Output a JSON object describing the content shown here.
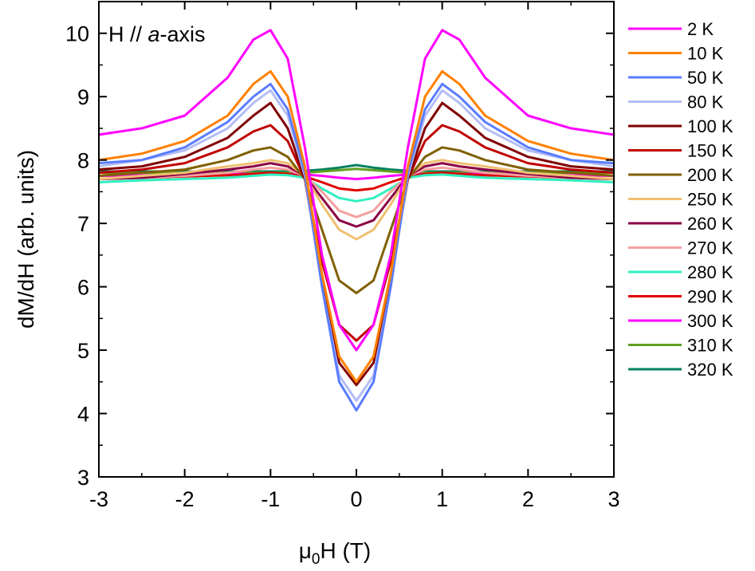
{
  "chart_data": {
    "type": "line",
    "annotation": {
      "prefix": "H // ",
      "italic": "a",
      "suffix": "-axis"
    },
    "xlabel": {
      "mu": "μ",
      "sub": "0",
      "rest": "H (T)"
    },
    "ylabel": "dM/dH (arb. units)",
    "xlim": [
      -3,
      3
    ],
    "ylim": [
      3,
      10.5
    ],
    "xticks": [
      -3,
      -2,
      -1,
      0,
      1,
      2,
      3
    ],
    "yticks": [
      3,
      4,
      5,
      6,
      7,
      8,
      9,
      10
    ],
    "xtick_labels": [
      "-3",
      "-2",
      "-1",
      "0",
      "1",
      "2",
      "3"
    ],
    "ytick_labels": [
      "3",
      "4",
      "5",
      "6",
      "7",
      "8",
      "9",
      "10"
    ],
    "grid": false,
    "legend_position": "right",
    "x": [
      -3.0,
      -2.5,
      -2.0,
      -1.5,
      -1.2,
      -1.0,
      -0.8,
      -0.6,
      -0.4,
      -0.2,
      0.0,
      0.2,
      0.4,
      0.6,
      0.8,
      1.0,
      1.2,
      1.5,
      2.0,
      2.5,
      3.0
    ],
    "series": [
      {
        "name": "2 K",
        "color": "#ff00ff",
        "values": [
          8.4,
          8.5,
          8.7,
          9.3,
          9.9,
          10.05,
          9.6,
          8.2,
          6.5,
          5.4,
          5.0,
          5.4,
          6.5,
          8.2,
          9.6,
          10.05,
          9.9,
          9.3,
          8.7,
          8.5,
          8.4
        ]
      },
      {
        "name": "10 K",
        "color": "#ff8000",
        "values": [
          8.0,
          8.1,
          8.3,
          8.7,
          9.2,
          9.4,
          9.0,
          7.9,
          6.2,
          4.9,
          4.5,
          4.9,
          6.2,
          7.9,
          9.0,
          9.4,
          9.2,
          8.7,
          8.3,
          8.1,
          8.0
        ]
      },
      {
        "name": "50 K",
        "color": "#5a7cff",
        "values": [
          7.95,
          8.0,
          8.2,
          8.6,
          9.0,
          9.2,
          8.8,
          7.8,
          6.0,
          4.5,
          4.05,
          4.5,
          6.0,
          7.8,
          8.8,
          9.2,
          9.0,
          8.6,
          8.2,
          8.0,
          7.95
        ]
      },
      {
        "name": "80 K",
        "color": "#b3bdf5",
        "values": [
          7.9,
          8.0,
          8.15,
          8.5,
          8.9,
          9.1,
          8.7,
          7.75,
          6.0,
          4.6,
          4.2,
          4.6,
          6.0,
          7.75,
          8.7,
          9.1,
          8.9,
          8.5,
          8.15,
          8.0,
          7.9
        ]
      },
      {
        "name": "100 K",
        "color": "#800000",
        "values": [
          7.85,
          7.9,
          8.05,
          8.35,
          8.7,
          8.9,
          8.5,
          7.7,
          6.1,
          4.8,
          4.45,
          4.8,
          6.1,
          7.7,
          8.5,
          8.9,
          8.7,
          8.35,
          8.05,
          7.9,
          7.85
        ]
      },
      {
        "name": "150 K",
        "color": "#c00000",
        "values": [
          7.8,
          7.85,
          7.95,
          8.2,
          8.45,
          8.55,
          8.3,
          7.7,
          6.4,
          5.4,
          5.15,
          5.4,
          6.4,
          7.7,
          8.3,
          8.55,
          8.45,
          8.2,
          7.95,
          7.85,
          7.8
        ]
      },
      {
        "name": "200 K",
        "color": "#806000",
        "values": [
          7.75,
          7.8,
          7.85,
          8.0,
          8.15,
          8.2,
          8.05,
          7.7,
          6.9,
          6.1,
          5.9,
          6.1,
          6.9,
          7.7,
          8.05,
          8.2,
          8.15,
          8.0,
          7.85,
          7.8,
          7.75
        ]
      },
      {
        "name": "250 K",
        "color": "#f0c070",
        "values": [
          7.7,
          7.75,
          7.8,
          7.9,
          7.95,
          8.0,
          7.95,
          7.75,
          7.3,
          6.9,
          6.75,
          6.9,
          7.3,
          7.75,
          7.95,
          8.0,
          7.95,
          7.9,
          7.8,
          7.75,
          7.7
        ]
      },
      {
        "name": "260 K",
        "color": "#8b0045",
        "values": [
          7.7,
          7.72,
          7.78,
          7.85,
          7.9,
          7.95,
          7.9,
          7.75,
          7.4,
          7.05,
          6.95,
          7.05,
          7.4,
          7.75,
          7.9,
          7.95,
          7.9,
          7.85,
          7.78,
          7.72,
          7.7
        ]
      },
      {
        "name": "270 K",
        "color": "#f5a0a0",
        "values": [
          7.7,
          7.72,
          7.75,
          7.8,
          7.85,
          7.88,
          7.85,
          7.75,
          7.5,
          7.2,
          7.1,
          7.2,
          7.5,
          7.75,
          7.85,
          7.88,
          7.85,
          7.8,
          7.75,
          7.72,
          7.7
        ]
      },
      {
        "name": "280 K",
        "color": "#30f0c0",
        "values": [
          7.65,
          7.68,
          7.7,
          7.72,
          7.75,
          7.77,
          7.76,
          7.72,
          7.55,
          7.4,
          7.35,
          7.4,
          7.55,
          7.72,
          7.76,
          7.77,
          7.75,
          7.72,
          7.7,
          7.68,
          7.65
        ]
      },
      {
        "name": "290 K",
        "color": "#e00000",
        "values": [
          7.7,
          7.72,
          7.74,
          7.76,
          7.78,
          7.8,
          7.78,
          7.74,
          7.65,
          7.55,
          7.52,
          7.55,
          7.65,
          7.74,
          7.78,
          7.8,
          7.78,
          7.76,
          7.74,
          7.72,
          7.7
        ]
      },
      {
        "name": "300 K",
        "color": "#ff00ff",
        "values": [
          7.75,
          7.76,
          7.77,
          7.78,
          7.78,
          7.79,
          7.78,
          7.77,
          7.75,
          7.72,
          7.7,
          7.72,
          7.75,
          7.77,
          7.78,
          7.79,
          7.78,
          7.78,
          7.77,
          7.76,
          7.75
        ]
      },
      {
        "name": "310 K",
        "color": "#60a020",
        "values": [
          7.8,
          7.8,
          7.8,
          7.8,
          7.8,
          7.8,
          7.8,
          7.8,
          7.82,
          7.84,
          7.86,
          7.84,
          7.82,
          7.8,
          7.8,
          7.8,
          7.8,
          7.8,
          7.8,
          7.8,
          7.8
        ]
      },
      {
        "name": "320 K",
        "color": "#008060",
        "values": [
          7.82,
          7.82,
          7.82,
          7.82,
          7.82,
          7.82,
          7.82,
          7.83,
          7.85,
          7.88,
          7.92,
          7.88,
          7.85,
          7.83,
          7.82,
          7.82,
          7.82,
          7.82,
          7.82,
          7.82,
          7.82
        ]
      }
    ]
  }
}
